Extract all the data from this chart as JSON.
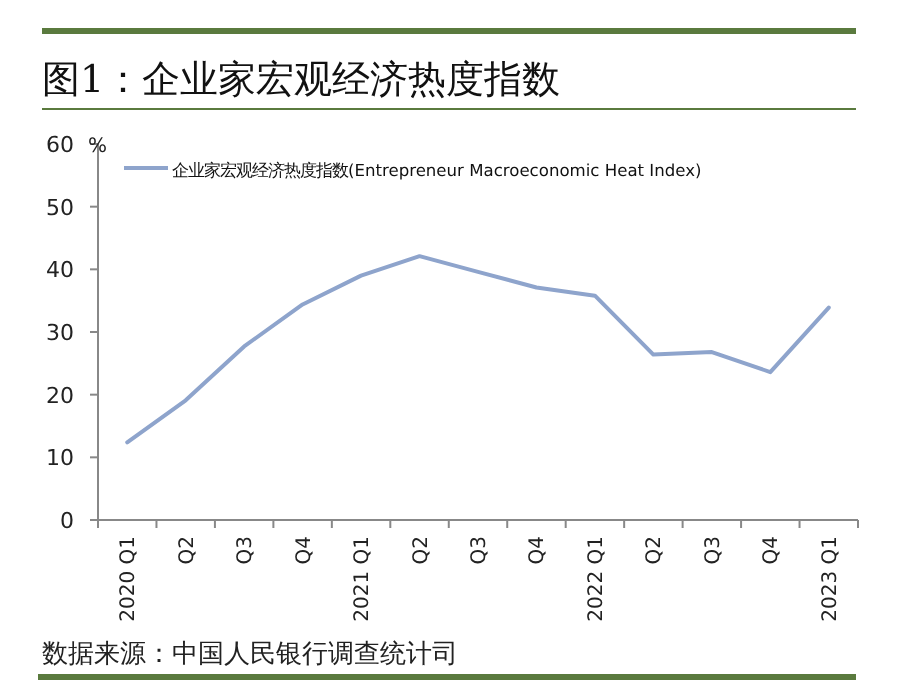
{
  "chart_data": {
    "type": "line",
    "title": "图1：企业家宏观经济热度指数",
    "ylabel": "%",
    "categories": [
      "2020 Q1",
      "Q2",
      "Q3",
      "Q4",
      "2021 Q1",
      "Q2",
      "Q3",
      "Q4",
      "2022 Q1",
      "Q2",
      "Q3",
      "Q4",
      "2023 Q1"
    ],
    "series": [
      {
        "name": "企业家宏观经济热度指数(Entrepreneur  Macroeconomic Heat Index)",
        "color": "#8ea4cc",
        "values": [
          12.4,
          19.1,
          27.7,
          34.4,
          39.0,
          42.1,
          39.6,
          37.1,
          35.8,
          26.4,
          26.8,
          23.6,
          33.9
        ]
      }
    ],
    "ylim": [
      0,
      60
    ],
    "yticks": [
      0,
      10,
      20,
      30,
      40,
      50,
      60
    ],
    "grid": false,
    "legend": "top",
    "marker": "none",
    "line_style": "solid",
    "annotations": [
      "数据来源：中国人民银行调查统计司"
    ]
  }
}
